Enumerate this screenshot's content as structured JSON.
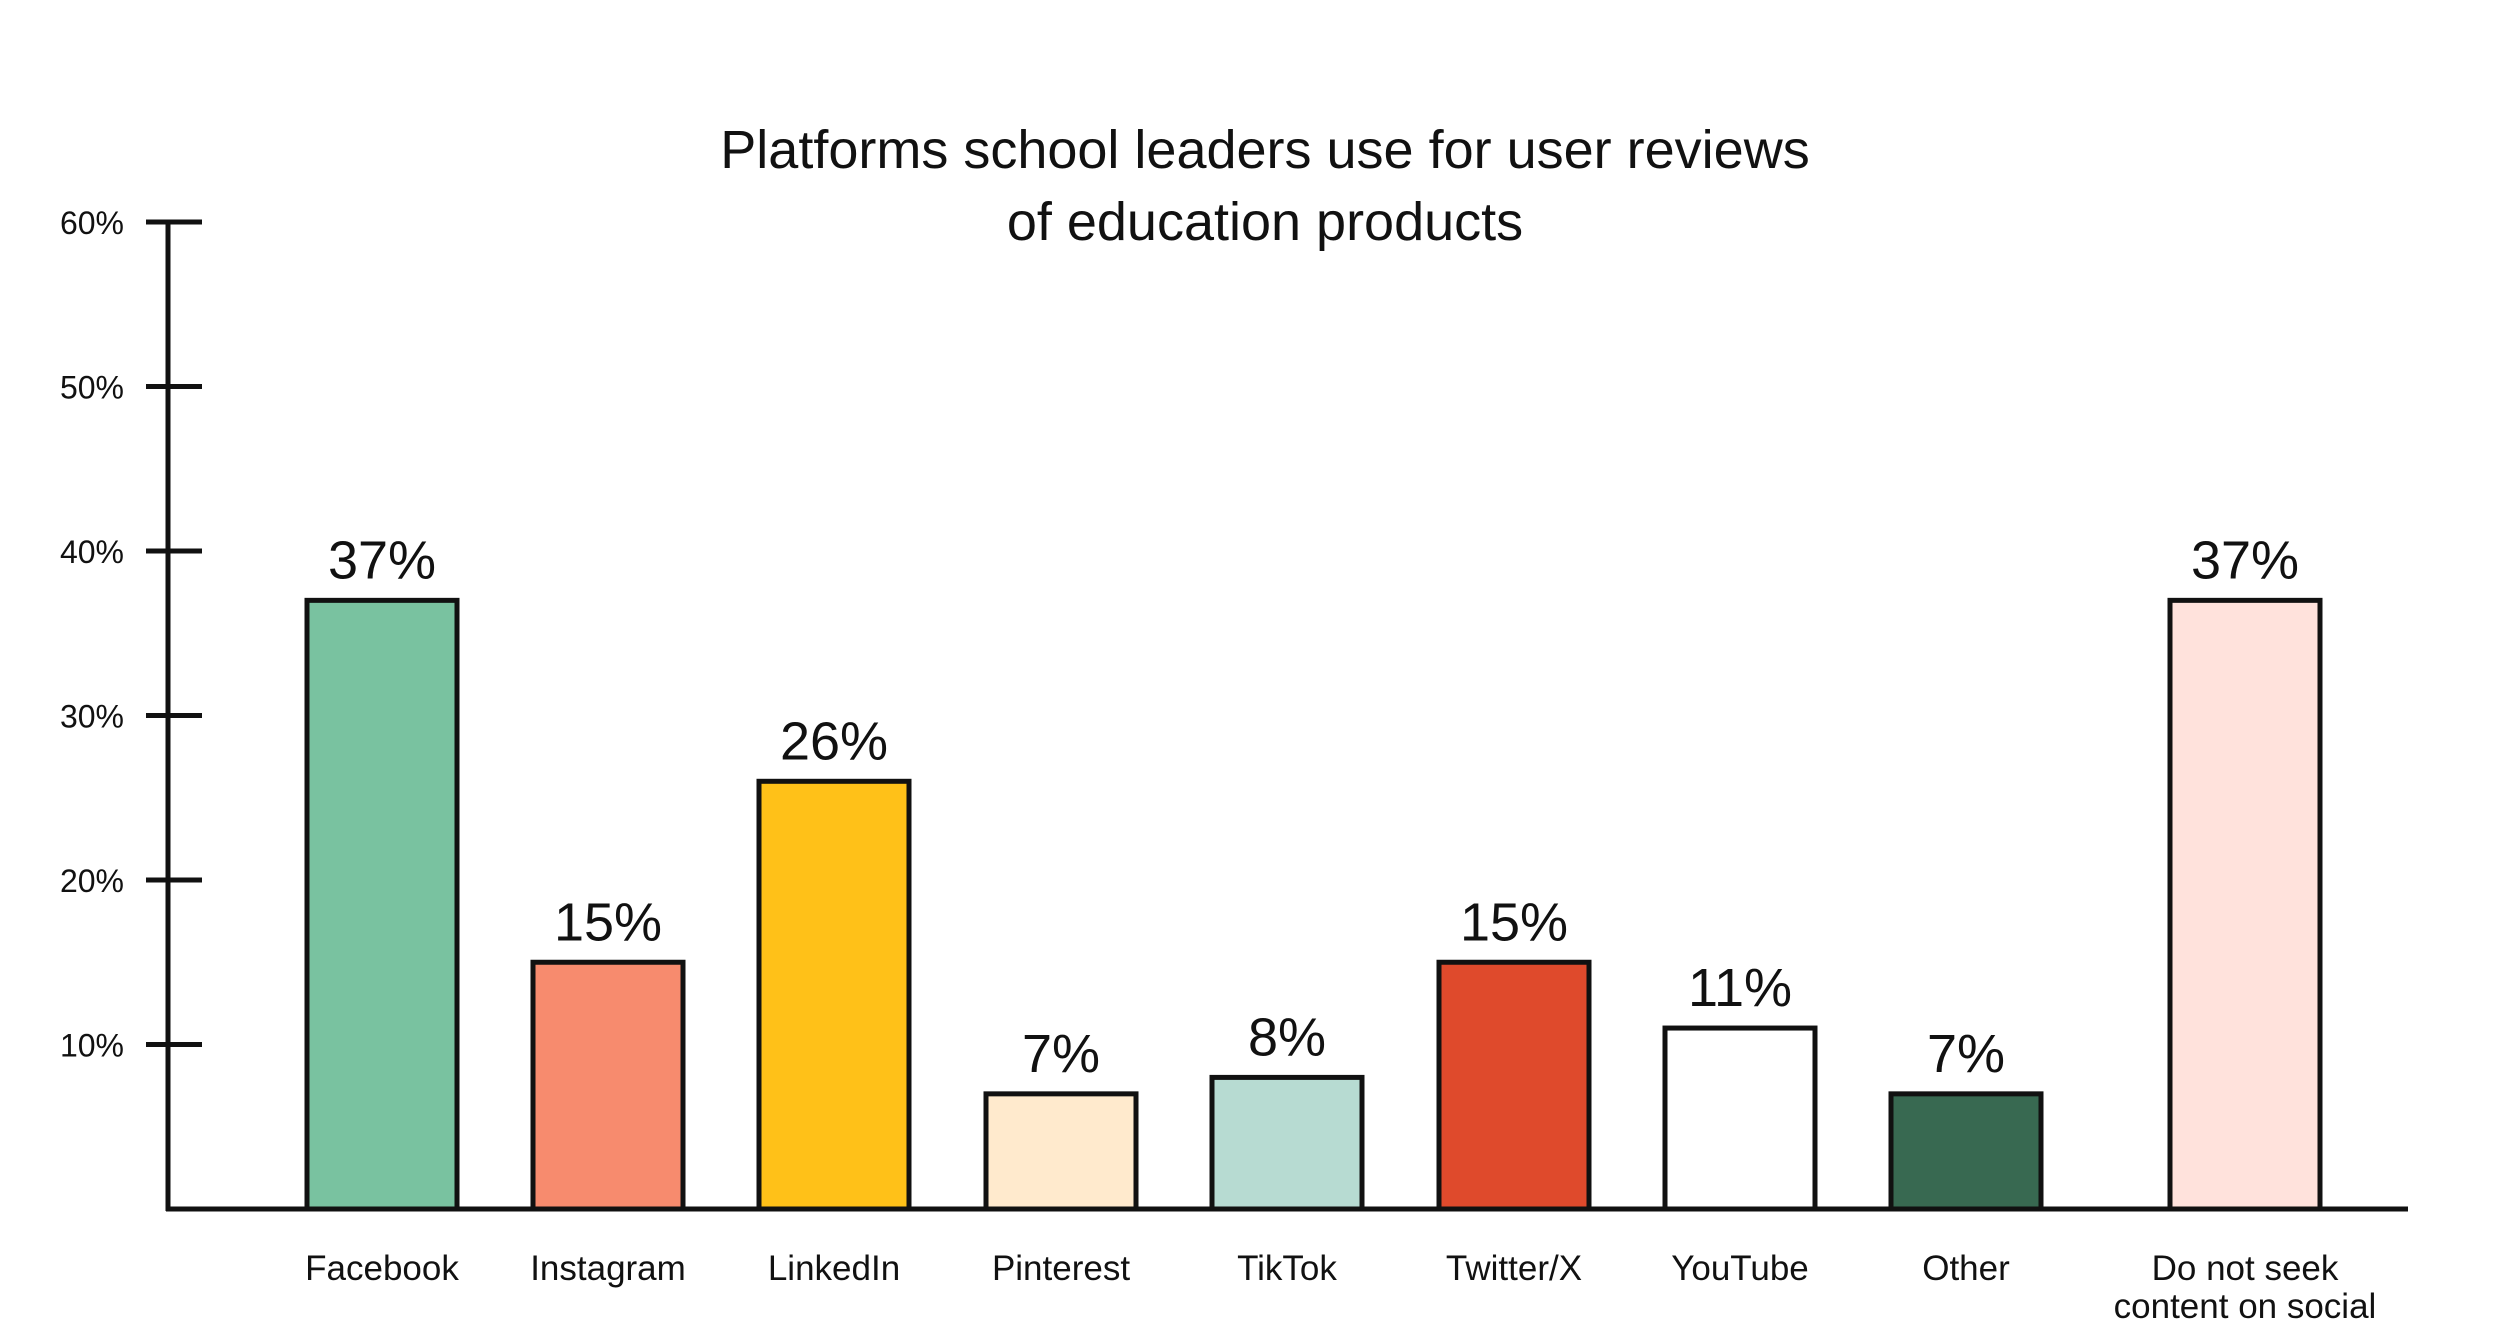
{
  "chart_data": {
    "type": "bar",
    "title": [
      "Platforms school leaders use for user reviews",
      "of education products"
    ],
    "xlabel": "",
    "ylabel": "",
    "ylim": [
      0,
      60
    ],
    "yticks": [
      10,
      20,
      30,
      40,
      50,
      60
    ],
    "ytick_labels": [
      "10%",
      "20%",
      "30%",
      "40%",
      "50%",
      "60%"
    ],
    "grid": false,
    "categories": [
      "Facebook",
      "Instagram",
      "LinkedIn",
      "Pinterest",
      "TikTok",
      "Twitter/X",
      "YouTube",
      "Other",
      "Do not seek content on social"
    ],
    "category_lines": [
      [
        "Facebook"
      ],
      [
        "Instagram"
      ],
      [
        "LinkedIn"
      ],
      [
        "Pinterest"
      ],
      [
        "TikTok"
      ],
      [
        "Twitter/X"
      ],
      [
        "YouTube"
      ],
      [
        "Other"
      ],
      [
        "Do not seek",
        "content on social"
      ]
    ],
    "values": [
      37,
      15,
      26,
      7,
      8,
      15,
      11,
      7,
      37
    ],
    "data_labels": [
      "37%",
      "15%",
      "26%",
      "7%",
      "8%",
      "15%",
      "11%",
      "7%",
      "37%"
    ],
    "colors": [
      "#79C2A0",
      "#F78B6E",
      "#FFC118",
      "#FFEACD",
      "#B7DBD2",
      "#DF4A2C",
      "#FFFFFF",
      "#386951",
      "#FFE2DC"
    ],
    "edge_color": "#111111"
  }
}
